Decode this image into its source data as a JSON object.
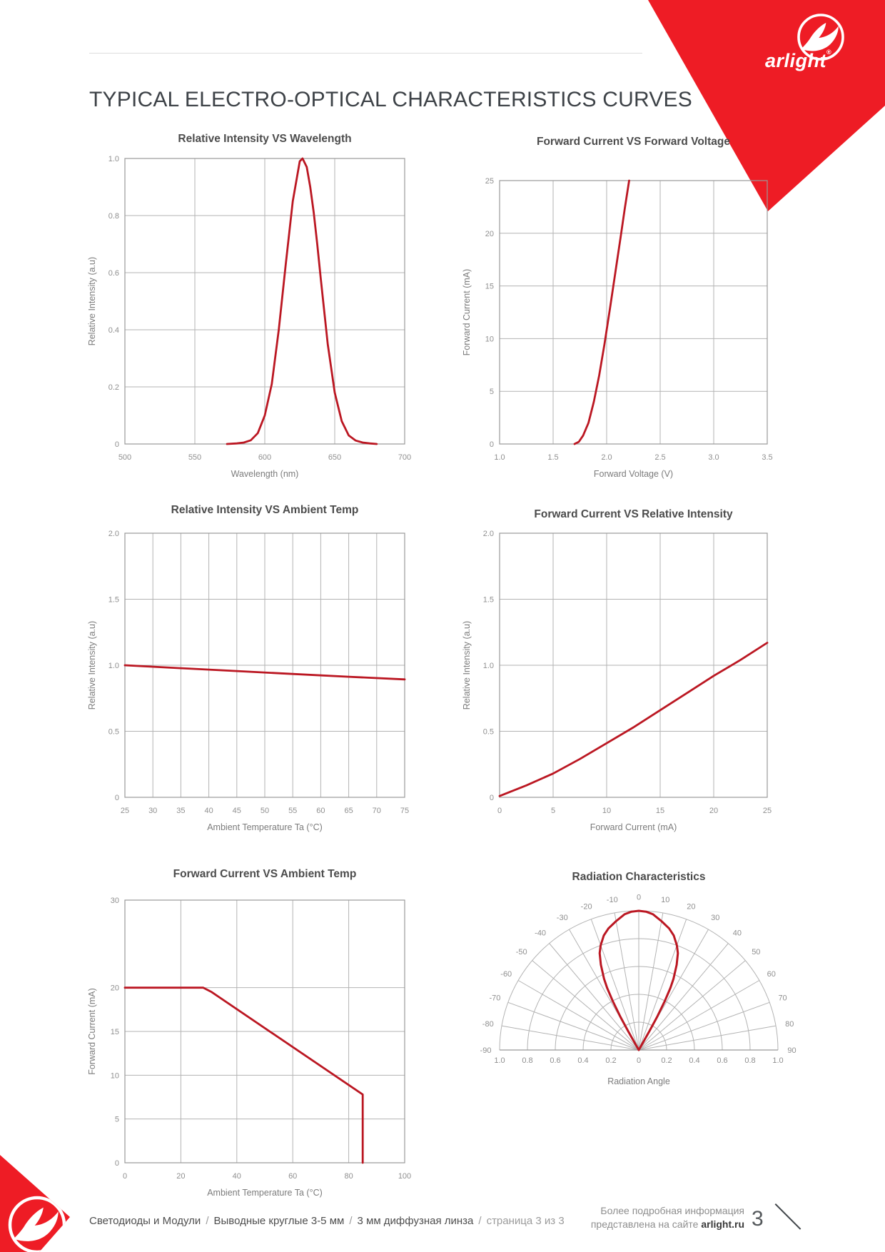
{
  "page": {
    "title": "TYPICAL ELECTRO-OPTICAL CHARACTERISTICS CURVES"
  },
  "logo": {
    "brand": "arlight",
    "registered": "®"
  },
  "colors": {
    "accent": "#ee1c25",
    "curve": "#bb1722",
    "grid": "#b3b3b3",
    "frame": "#999999"
  },
  "chart_data": [
    {
      "type": "line",
      "title": "Relative Intensity VS Wavelength",
      "xlabel": "Wavelength (nm)",
      "ylabel": "Relative Intensity (a.u)",
      "xlim": [
        500,
        700
      ],
      "ylim": [
        0,
        1
      ],
      "xticks": [
        500,
        550,
        600,
        650,
        700
      ],
      "xtick_labels": [
        "500",
        "550",
        "600",
        "650",
        "700"
      ],
      "yticks": [
        0,
        0.2,
        0.4,
        0.6,
        0.8,
        1.0
      ],
      "ytick_labels": [
        "0",
        "0.2",
        "0.4",
        "0.6",
        "0.8",
        "1.0"
      ],
      "series": [
        {
          "name": "relative-intensity",
          "points": [
            [
              573,
              0
            ],
            [
              580,
              0.002
            ],
            [
              585,
              0.005
            ],
            [
              590,
              0.013
            ],
            [
              595,
              0.038
            ],
            [
              600,
              0.1
            ],
            [
              605,
              0.21
            ],
            [
              610,
              0.4
            ],
            [
              615,
              0.63
            ],
            [
              617.5,
              0.74
            ],
            [
              620,
              0.85
            ],
            [
              622.5,
              0.92
            ],
            [
              625,
              0.99
            ],
            [
              627,
              1.0
            ],
            [
              630,
              0.97
            ],
            [
              632.5,
              0.9
            ],
            [
              635,
              0.81
            ],
            [
              637.5,
              0.7
            ],
            [
              640,
              0.58
            ],
            [
              645,
              0.35
            ],
            [
              650,
              0.18
            ],
            [
              655,
              0.08
            ],
            [
              660,
              0.03
            ],
            [
              665,
              0.012
            ],
            [
              670,
              0.005
            ],
            [
              675,
              0.002
            ],
            [
              680,
              0
            ]
          ]
        }
      ]
    },
    {
      "type": "line",
      "title": "Forward Current VS Forward Voltage",
      "xlabel": "Forward Voltage (V)",
      "ylabel": "Forward Current (mA)",
      "xlim": [
        1.0,
        3.5
      ],
      "ylim": [
        0,
        25
      ],
      "xticks": [
        1.0,
        1.5,
        2.0,
        2.5,
        3.0,
        3.5
      ],
      "xtick_labels": [
        "1.0",
        "1.5",
        "2.0",
        "2.5",
        "3.0",
        "3.5"
      ],
      "yticks": [
        0,
        5,
        10,
        15,
        20,
        25
      ],
      "ytick_labels": [
        "0",
        "5",
        "10",
        "15",
        "20",
        "25"
      ],
      "series": [
        {
          "name": "forward-current",
          "points": [
            [
              1.7,
              0
            ],
            [
              1.74,
              0.2
            ],
            [
              1.78,
              0.8
            ],
            [
              1.83,
              2.0
            ],
            [
              1.88,
              4.0
            ],
            [
              1.93,
              6.5
            ],
            [
              1.98,
              9.5
            ],
            [
              2.03,
              12.8
            ],
            [
              2.08,
              16.2
            ],
            [
              2.13,
              19.6
            ],
            [
              2.17,
              22.4
            ],
            [
              2.21,
              25
            ]
          ]
        }
      ]
    },
    {
      "type": "line",
      "title": "Relative Intensity VS Ambient Temp",
      "xlabel": "Ambient Temperature Ta (°C)",
      "ylabel": "Relative Intensity (a.u)",
      "xlim": [
        25,
        75
      ],
      "ylim": [
        0,
        2
      ],
      "xticks": [
        25,
        30,
        35,
        40,
        45,
        50,
        55,
        60,
        65,
        70,
        75
      ],
      "xtick_labels": [
        "25",
        "30",
        "35",
        "40",
        "45",
        "50",
        "55",
        "60",
        "65",
        "70",
        "75"
      ],
      "yticks": [
        0,
        0.5,
        1,
        1.5,
        2
      ],
      "ytick_labels": [
        "0",
        "0.5",
        "1.0",
        "1.5",
        "2.0"
      ],
      "series": [
        {
          "name": "relative-intensity",
          "points": [
            [
              25,
              1.0
            ],
            [
              35,
              0.978
            ],
            [
              45,
              0.956
            ],
            [
              55,
              0.934
            ],
            [
              65,
              0.913
            ],
            [
              75,
              0.893
            ]
          ]
        }
      ]
    },
    {
      "type": "line",
      "title": "Forward Current VS Relative Intensity",
      "xlabel": "Forward Current (mA)",
      "ylabel": "Relative Intensity (a.u)",
      "xlim": [
        0,
        25
      ],
      "ylim": [
        0,
        2
      ],
      "xticks": [
        0,
        5,
        10,
        15,
        20,
        25
      ],
      "xtick_labels": [
        "0",
        "5",
        "10",
        "15",
        "20",
        "25"
      ],
      "yticks": [
        0,
        0.5,
        1,
        1.5,
        2
      ],
      "ytick_labels": [
        "0",
        "0.5",
        "1.0",
        "1.5",
        "2.0"
      ],
      "series": [
        {
          "name": "relative-intensity",
          "points": [
            [
              0,
              0.01
            ],
            [
              2.5,
              0.09
            ],
            [
              5,
              0.18
            ],
            [
              7.5,
              0.29
            ],
            [
              10,
              0.41
            ],
            [
              12.5,
              0.53
            ],
            [
              15,
              0.66
            ],
            [
              17.5,
              0.79
            ],
            [
              20,
              0.92
            ],
            [
              22.5,
              1.04
            ],
            [
              25,
              1.17
            ]
          ]
        }
      ]
    },
    {
      "type": "line",
      "title": "Forward Current VS Ambient Temp",
      "xlabel": "Ambient Temperature Ta (°C)",
      "ylabel": "Forward Current (mA)",
      "xlim": [
        0,
        100
      ],
      "ylim": [
        0,
        30
      ],
      "xticks": [
        0,
        20,
        40,
        60,
        80,
        100
      ],
      "xtick_labels": [
        "0",
        "20",
        "40",
        "60",
        "80",
        "100"
      ],
      "yticks": [
        0,
        5,
        10,
        15,
        20,
        30
      ],
      "ytick_labels": [
        "0",
        "5",
        "10",
        "15",
        "20",
        "30"
      ],
      "series": [
        {
          "name": "max-forward-current",
          "points": [
            [
              0,
              20
            ],
            [
              28,
              20
            ],
            [
              31,
              19.5
            ],
            [
              85,
              7.8
            ],
            [
              85,
              0
            ]
          ]
        }
      ]
    },
    {
      "type": "polar",
      "title": "Radiation Characteristics",
      "xlabel": "Radiation Angle",
      "angle_ticks": [
        -90,
        -80,
        -70,
        -60,
        -50,
        -40,
        -30,
        -20,
        -10,
        0,
        10,
        20,
        30,
        40,
        50,
        60,
        70,
        80,
        90
      ],
      "r_ticks": [
        0.2,
        0.4,
        0.6,
        0.8,
        1.0
      ],
      "r_axis_labels": [
        "1.0",
        "0.8",
        "0.6",
        "0.4",
        "0.2",
        "0",
        "0.2",
        "0.4",
        "0.6",
        "0.8",
        "1.0"
      ],
      "series": [
        {
          "name": "radiation-pattern",
          "points": [
            [
              -30,
              0
            ],
            [
              -29.5,
              0.15
            ],
            [
              -29,
              0.27
            ],
            [
              -28,
              0.4
            ],
            [
              -27,
              0.5
            ],
            [
              -26,
              0.57
            ],
            [
              -24,
              0.67
            ],
            [
              -22,
              0.75
            ],
            [
              -20,
              0.8
            ],
            [
              -17,
              0.86
            ],
            [
              -14,
              0.9
            ],
            [
              -10,
              0.94
            ],
            [
              -6,
              0.98
            ],
            [
              -3,
              0.995
            ],
            [
              0,
              1.0
            ],
            [
              3,
              0.995
            ],
            [
              6,
              0.98
            ],
            [
              10,
              0.94
            ],
            [
              14,
              0.9
            ],
            [
              17,
              0.86
            ],
            [
              20,
              0.8
            ],
            [
              22,
              0.75
            ],
            [
              24,
              0.67
            ],
            [
              26,
              0.57
            ],
            [
              27,
              0.5
            ],
            [
              28,
              0.4
            ],
            [
              29,
              0.27
            ],
            [
              29.5,
              0.15
            ],
            [
              30,
              0
            ]
          ]
        }
      ]
    }
  ],
  "footer": {
    "breadcrumb": [
      "Светодиоды и Модули",
      "Выводные круглые 3-5 мм",
      "3 мм диффузная линза",
      "страница 3 из 3"
    ],
    "separator": "/",
    "info_line1": "Более подробная информация",
    "info_line2_prefix": "представлена на сайте ",
    "info_site": "arlight.ru",
    "page_number": "3"
  }
}
